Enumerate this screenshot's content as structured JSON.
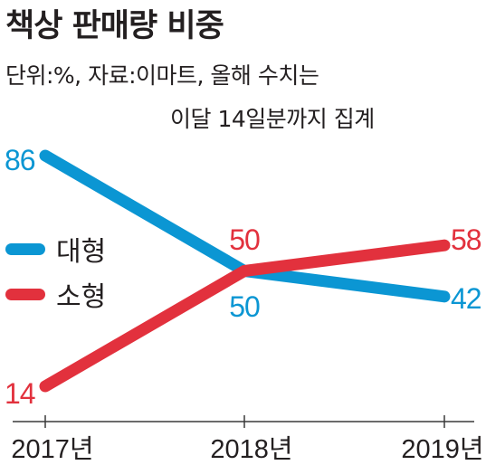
{
  "header": {
    "title": "책상 판매량 비중",
    "note_line1": "단위:%, 자료:이마트, 올해 수치는",
    "note_line2": "이달 14일분까지 집계"
  },
  "chart_data": {
    "type": "line",
    "title": "책상 판매량 비중",
    "categories": [
      "2017년",
      "2018년",
      "2019년"
    ],
    "series": [
      {
        "name": "대형",
        "values": [
          86,
          50,
          42
        ],
        "color": "#0b96d3"
      },
      {
        "name": "소형",
        "values": [
          14,
          50,
          58
        ],
        "color": "#e2313d"
      }
    ],
    "ylim": [
      14,
      86
    ],
    "grid": false,
    "legend": "left"
  }
}
